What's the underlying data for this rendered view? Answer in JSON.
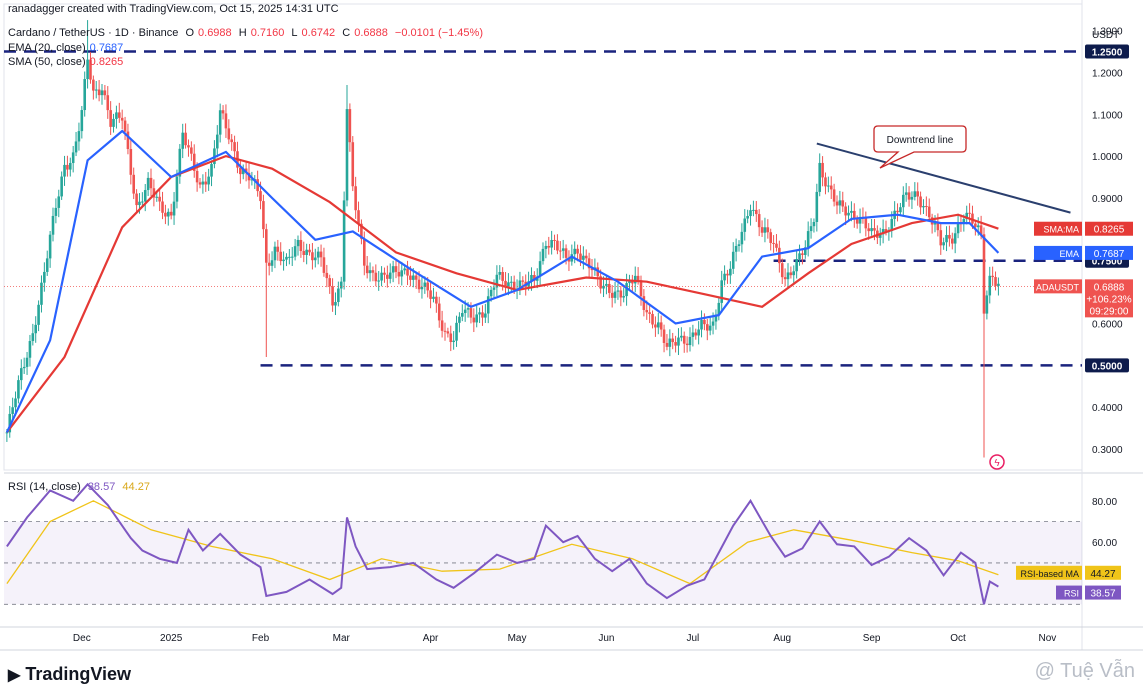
{
  "header": {
    "created_by": "ranadagger created with TradingView.com, Oct 15, 2025 14:31 UTC",
    "symbol": "Cardano / TetherUS · 1D · Binance",
    "open_label": "O",
    "open": "0.6988",
    "high_label": "H",
    "high": "0.7160",
    "low_label": "L",
    "low": "0.6742",
    "close_label": "C",
    "close": "0.6888",
    "change": "−0.0101 (−1.45%)",
    "ema_label": "EMA (20, close)",
    "ema_value": "0.7687",
    "sma_label": "SMA (50, close)",
    "sma_value": "0.8265"
  },
  "rsi_header": {
    "label": "RSI (14, close)",
    "rsi": "38.57",
    "ma": "44.27"
  },
  "footer": {
    "brand": "TradingView",
    "watermark": "@ Tuệ Vẫn"
  },
  "colors": {
    "up": "#26a69a",
    "down": "#ef5350",
    "ema": "#2962ff",
    "sma": "#e53935",
    "level": "#1a237e",
    "trend": "#2a3f6e",
    "rsi": "#7e57c2",
    "rsi_ma": "#f0c419"
  },
  "chart_data": [
    {
      "type": "candlestick",
      "title": "Cardano / TetherUS · 1D · Binance",
      "unit": "USDT",
      "y_ticks": [
        "1.3000",
        "1.2000",
        "1.1000",
        "1.0000",
        "0.9000",
        "0.6000",
        "0.4000",
        "0.3000"
      ],
      "ylim": [
        0.25,
        1.33
      ],
      "x_labels": [
        "Dec",
        "2025",
        "Feb",
        "Mar",
        "Apr",
        "May",
        "Jun",
        "Jul",
        "Aug",
        "Sep",
        "Oct",
        "Nov"
      ],
      "x_dates": [
        "2024-12-01",
        "2025-01-01",
        "2025-02-01",
        "2025-03-01",
        "2025-04-01",
        "2025-05-01",
        "2025-06-01",
        "2025-07-01",
        "2025-08-01",
        "2025-09-01",
        "2025-10-01",
        "2025-11-01"
      ],
      "xlim": [
        "2024-11-04",
        "2025-11-13"
      ],
      "closes": [
        {
          "d": "2024-11-05",
          "c": 0.34
        },
        {
          "d": "2024-11-10",
          "c": 0.48
        },
        {
          "d": "2024-11-14",
          "c": 0.58
        },
        {
          "d": "2024-11-18",
          "c": 0.72
        },
        {
          "d": "2024-11-22",
          "c": 0.88
        },
        {
          "d": "2024-11-25",
          "c": 0.98
        },
        {
          "d": "2024-11-28",
          "c": 1.0
        },
        {
          "d": "2024-12-01",
          "c": 1.1
        },
        {
          "d": "2024-12-03",
          "c": 1.23
        },
        {
          "d": "2024-12-05",
          "c": 1.15
        },
        {
          "d": "2024-12-08",
          "c": 1.17
        },
        {
          "d": "2024-12-11",
          "c": 1.08
        },
        {
          "d": "2024-12-15",
          "c": 1.09
        },
        {
          "d": "2024-12-18",
          "c": 0.97
        },
        {
          "d": "2024-12-20",
          "c": 0.88
        },
        {
          "d": "2024-12-24",
          "c": 0.93
        },
        {
          "d": "2024-12-28",
          "c": 0.88
        },
        {
          "d": "2025-01-01",
          "c": 0.86
        },
        {
          "d": "2025-01-05",
          "c": 1.05
        },
        {
          "d": "2025-01-08",
          "c": 0.99
        },
        {
          "d": "2025-01-11",
          "c": 0.93
        },
        {
          "d": "2025-01-15",
          "c": 0.97
        },
        {
          "d": "2025-01-18",
          "c": 1.1
        },
        {
          "d": "2025-01-21",
          "c": 1.05
        },
        {
          "d": "2025-01-25",
          "c": 0.97
        },
        {
          "d": "2025-01-28",
          "c": 0.95
        },
        {
          "d": "2025-02-01",
          "c": 0.9
        },
        {
          "d": "2025-02-03",
          "c": 0.74
        },
        {
          "d": "2025-02-06",
          "c": 0.78
        },
        {
          "d": "2025-02-10",
          "c": 0.74
        },
        {
          "d": "2025-02-14",
          "c": 0.79
        },
        {
          "d": "2025-02-18",
          "c": 0.77
        },
        {
          "d": "2025-02-22",
          "c": 0.75
        },
        {
          "d": "2025-02-26",
          "c": 0.65
        },
        {
          "d": "2025-03-01",
          "c": 0.7
        },
        {
          "d": "2025-03-03",
          "c": 1.12
        },
        {
          "d": "2025-03-05",
          "c": 0.92
        },
        {
          "d": "2025-03-09",
          "c": 0.74
        },
        {
          "d": "2025-03-12",
          "c": 0.72
        },
        {
          "d": "2025-03-16",
          "c": 0.71
        },
        {
          "d": "2025-03-20",
          "c": 0.72
        },
        {
          "d": "2025-03-24",
          "c": 0.73
        },
        {
          "d": "2025-03-28",
          "c": 0.69
        },
        {
          "d": "2025-04-02",
          "c": 0.66
        },
        {
          "d": "2025-04-06",
          "c": 0.58
        },
        {
          "d": "2025-04-09",
          "c": 0.56
        },
        {
          "d": "2025-04-12",
          "c": 0.63
        },
        {
          "d": "2025-04-16",
          "c": 0.62
        },
        {
          "d": "2025-04-20",
          "c": 0.63
        },
        {
          "d": "2025-04-24",
          "c": 0.71
        },
        {
          "d": "2025-04-28",
          "c": 0.7
        },
        {
          "d": "2025-05-03",
          "c": 0.69
        },
        {
          "d": "2025-05-07",
          "c": 0.7
        },
        {
          "d": "2025-05-11",
          "c": 0.8
        },
        {
          "d": "2025-05-14",
          "c": 0.79
        },
        {
          "d": "2025-05-18",
          "c": 0.75
        },
        {
          "d": "2025-05-22",
          "c": 0.78
        },
        {
          "d": "2025-05-26",
          "c": 0.74
        },
        {
          "d": "2025-05-30",
          "c": 0.69
        },
        {
          "d": "2025-06-03",
          "c": 0.68
        },
        {
          "d": "2025-06-07",
          "c": 0.67
        },
        {
          "d": "2025-06-11",
          "c": 0.71
        },
        {
          "d": "2025-06-15",
          "c": 0.63
        },
        {
          "d": "2025-06-19",
          "c": 0.59
        },
        {
          "d": "2025-06-22",
          "c": 0.54
        },
        {
          "d": "2025-06-26",
          "c": 0.57
        },
        {
          "d": "2025-06-30",
          "c": 0.56
        },
        {
          "d": "2025-07-04",
          "c": 0.59
        },
        {
          "d": "2025-07-08",
          "c": 0.6
        },
        {
          "d": "2025-07-11",
          "c": 0.7
        },
        {
          "d": "2025-07-14",
          "c": 0.73
        },
        {
          "d": "2025-07-18",
          "c": 0.82
        },
        {
          "d": "2025-07-21",
          "c": 0.89
        },
        {
          "d": "2025-07-25",
          "c": 0.82
        },
        {
          "d": "2025-07-29",
          "c": 0.79
        },
        {
          "d": "2025-08-02",
          "c": 0.71
        },
        {
          "d": "2025-08-06",
          "c": 0.74
        },
        {
          "d": "2025-08-09",
          "c": 0.78
        },
        {
          "d": "2025-08-12",
          "c": 0.86
        },
        {
          "d": "2025-08-14",
          "c": 0.98
        },
        {
          "d": "2025-08-17",
          "c": 0.92
        },
        {
          "d": "2025-08-20",
          "c": 0.88
        },
        {
          "d": "2025-08-24",
          "c": 0.87
        },
        {
          "d": "2025-08-28",
          "c": 0.85
        },
        {
          "d": "2025-09-01",
          "c": 0.81
        },
        {
          "d": "2025-09-05",
          "c": 0.82
        },
        {
          "d": "2025-09-09",
          "c": 0.86
        },
        {
          "d": "2025-09-13",
          "c": 0.9
        },
        {
          "d": "2025-09-17",
          "c": 0.91
        },
        {
          "d": "2025-09-21",
          "c": 0.86
        },
        {
          "d": "2025-09-25",
          "c": 0.79
        },
        {
          "d": "2025-09-29",
          "c": 0.81
        },
        {
          "d": "2025-10-03",
          "c": 0.86
        },
        {
          "d": "2025-10-06",
          "c": 0.84
        },
        {
          "d": "2025-10-09",
          "c": 0.81
        },
        {
          "d": "2025-10-10",
          "c": 0.64
        },
        {
          "d": "2025-10-12",
          "c": 0.71
        },
        {
          "d": "2025-10-13",
          "c": 0.72
        },
        {
          "d": "2025-10-15",
          "c": 0.6888
        }
      ],
      "extreme_wicks": [
        {
          "d": "2024-12-03",
          "h": 1.325
        },
        {
          "d": "2025-02-03",
          "l": 0.52
        },
        {
          "d": "2025-03-03",
          "h": 1.17
        },
        {
          "d": "2025-10-10",
          "l": 0.28
        }
      ],
      "ema20": [
        {
          "d": "2024-11-05",
          "v": 0.34
        },
        {
          "d": "2024-11-20",
          "v": 0.56
        },
        {
          "d": "2024-12-03",
          "v": 0.99
        },
        {
          "d": "2024-12-15",
          "v": 1.06
        },
        {
          "d": "2025-01-01",
          "v": 0.95
        },
        {
          "d": "2025-01-20",
          "v": 1.01
        },
        {
          "d": "2025-02-05",
          "v": 0.9
        },
        {
          "d": "2025-02-20",
          "v": 0.8
        },
        {
          "d": "2025-03-05",
          "v": 0.82
        },
        {
          "d": "2025-03-25",
          "v": 0.73
        },
        {
          "d": "2025-04-15",
          "v": 0.64
        },
        {
          "d": "2025-05-01",
          "v": 0.68
        },
        {
          "d": "2025-05-20",
          "v": 0.76
        },
        {
          "d": "2025-06-05",
          "v": 0.7
        },
        {
          "d": "2025-06-25",
          "v": 0.6
        },
        {
          "d": "2025-07-10",
          "v": 0.62
        },
        {
          "d": "2025-07-25",
          "v": 0.76
        },
        {
          "d": "2025-08-10",
          "v": 0.78
        },
        {
          "d": "2025-08-25",
          "v": 0.85
        },
        {
          "d": "2025-09-10",
          "v": 0.86
        },
        {
          "d": "2025-09-25",
          "v": 0.84
        },
        {
          "d": "2025-10-05",
          "v": 0.84
        },
        {
          "d": "2025-10-15",
          "v": 0.7687
        }
      ],
      "sma50": [
        {
          "d": "2024-11-05",
          "v": 0.34
        },
        {
          "d": "2024-11-25",
          "v": 0.52
        },
        {
          "d": "2024-12-15",
          "v": 0.83
        },
        {
          "d": "2025-01-01",
          "v": 0.95
        },
        {
          "d": "2025-01-20",
          "v": 1.0
        },
        {
          "d": "2025-02-05",
          "v": 0.97
        },
        {
          "d": "2025-02-25",
          "v": 0.89
        },
        {
          "d": "2025-03-20",
          "v": 0.77
        },
        {
          "d": "2025-04-10",
          "v": 0.72
        },
        {
          "d": "2025-05-01",
          "v": 0.68
        },
        {
          "d": "2025-05-25",
          "v": 0.71
        },
        {
          "d": "2025-06-15",
          "v": 0.7
        },
        {
          "d": "2025-07-05",
          "v": 0.67
        },
        {
          "d": "2025-07-25",
          "v": 0.64
        },
        {
          "d": "2025-08-10",
          "v": 0.72
        },
        {
          "d": "2025-08-25",
          "v": 0.79
        },
        {
          "d": "2025-09-15",
          "v": 0.84
        },
        {
          "d": "2025-10-01",
          "v": 0.86
        },
        {
          "d": "2025-10-15",
          "v": 0.8265
        }
      ],
      "horizontal_levels": [
        {
          "value": 1.25,
          "label": "1.2500"
        },
        {
          "value": 0.75,
          "label": "0.7500"
        },
        {
          "value": 0.5,
          "label": "0.5000"
        }
      ],
      "trendline": {
        "from": {
          "d": "2025-08-13",
          "v": 1.03
        },
        "to": {
          "d": "2025-11-09",
          "v": 0.865
        }
      },
      "annotation": "Downtrend line",
      "price_tags": [
        {
          "label": "SMA:MA",
          "value": "0.8265"
        },
        {
          "label": "EMA",
          "value": "0.7687"
        },
        {
          "label": "ADAUSDT",
          "value": "0.6888",
          "lines": [
            "+106.23%",
            "09:29:00"
          ]
        }
      ]
    },
    {
      "type": "line",
      "title": "RSI (14, close)",
      "y_ticks": [
        "80.00",
        "60.00"
      ],
      "ylim": [
        20,
        92
      ],
      "band": [
        30,
        70
      ],
      "rsi": [
        {
          "d": "2024-11-05",
          "v": 58
        },
        {
          "d": "2024-11-12",
          "v": 72
        },
        {
          "d": "2024-11-20",
          "v": 85
        },
        {
          "d": "2024-11-28",
          "v": 80
        },
        {
          "d": "2024-12-03",
          "v": 88
        },
        {
          "d": "2024-12-10",
          "v": 78
        },
        {
          "d": "2024-12-18",
          "v": 62
        },
        {
          "d": "2024-12-22",
          "v": 56
        },
        {
          "d": "2024-12-28",
          "v": 52
        },
        {
          "d": "2025-01-03",
          "v": 50
        },
        {
          "d": "2025-01-07",
          "v": 66
        },
        {
          "d": "2025-01-12",
          "v": 56
        },
        {
          "d": "2025-01-18",
          "v": 64
        },
        {
          "d": "2025-01-25",
          "v": 54
        },
        {
          "d": "2025-02-01",
          "v": 48
        },
        {
          "d": "2025-02-03",
          "v": 34
        },
        {
          "d": "2025-02-10",
          "v": 36
        },
        {
          "d": "2025-02-18",
          "v": 42
        },
        {
          "d": "2025-02-26",
          "v": 35
        },
        {
          "d": "2025-03-01",
          "v": 38
        },
        {
          "d": "2025-03-03",
          "v": 72
        },
        {
          "d": "2025-03-06",
          "v": 58
        },
        {
          "d": "2025-03-10",
          "v": 47
        },
        {
          "d": "2025-03-18",
          "v": 48
        },
        {
          "d": "2025-03-26",
          "v": 50
        },
        {
          "d": "2025-04-03",
          "v": 42
        },
        {
          "d": "2025-04-09",
          "v": 38
        },
        {
          "d": "2025-04-16",
          "v": 45
        },
        {
          "d": "2025-04-24",
          "v": 54
        },
        {
          "d": "2025-05-01",
          "v": 50
        },
        {
          "d": "2025-05-07",
          "v": 52
        },
        {
          "d": "2025-05-11",
          "v": 68
        },
        {
          "d": "2025-05-17",
          "v": 60
        },
        {
          "d": "2025-05-22",
          "v": 63
        },
        {
          "d": "2025-05-28",
          "v": 52
        },
        {
          "d": "2025-06-03",
          "v": 46
        },
        {
          "d": "2025-06-09",
          "v": 52
        },
        {
          "d": "2025-06-15",
          "v": 40
        },
        {
          "d": "2025-06-22",
          "v": 33
        },
        {
          "d": "2025-06-29",
          "v": 39
        },
        {
          "d": "2025-07-05",
          "v": 42
        },
        {
          "d": "2025-07-10",
          "v": 55
        },
        {
          "d": "2025-07-15",
          "v": 68
        },
        {
          "d": "2025-07-21",
          "v": 80
        },
        {
          "d": "2025-07-28",
          "v": 63
        },
        {
          "d": "2025-08-02",
          "v": 53
        },
        {
          "d": "2025-08-08",
          "v": 57
        },
        {
          "d": "2025-08-14",
          "v": 70
        },
        {
          "d": "2025-08-20",
          "v": 59
        },
        {
          "d": "2025-08-26",
          "v": 58
        },
        {
          "d": "2025-09-01",
          "v": 49
        },
        {
          "d": "2025-09-07",
          "v": 53
        },
        {
          "d": "2025-09-14",
          "v": 62
        },
        {
          "d": "2025-09-20",
          "v": 56
        },
        {
          "d": "2025-09-26",
          "v": 44
        },
        {
          "d": "2025-10-02",
          "v": 55
        },
        {
          "d": "2025-10-07",
          "v": 50
        },
        {
          "d": "2025-10-10",
          "v": 30
        },
        {
          "d": "2025-10-12",
          "v": 41
        },
        {
          "d": "2025-10-15",
          "v": 38.57
        }
      ],
      "rsi_ma": [
        {
          "d": "2024-11-05",
          "v": 40
        },
        {
          "d": "2024-11-20",
          "v": 70
        },
        {
          "d": "2024-12-05",
          "v": 80
        },
        {
          "d": "2024-12-25",
          "v": 66
        },
        {
          "d": "2025-01-15",
          "v": 58
        },
        {
          "d": "2025-02-05",
          "v": 52
        },
        {
          "d": "2025-02-25",
          "v": 42
        },
        {
          "d": "2025-03-15",
          "v": 52
        },
        {
          "d": "2025-04-05",
          "v": 46
        },
        {
          "d": "2025-04-25",
          "v": 47
        },
        {
          "d": "2025-05-20",
          "v": 59
        },
        {
          "d": "2025-06-10",
          "v": 52
        },
        {
          "d": "2025-06-30",
          "v": 40
        },
        {
          "d": "2025-07-20",
          "v": 60
        },
        {
          "d": "2025-08-05",
          "v": 66
        },
        {
          "d": "2025-08-25",
          "v": 61
        },
        {
          "d": "2025-09-15",
          "v": 55
        },
        {
          "d": "2025-10-01",
          "v": 51
        },
        {
          "d": "2025-10-15",
          "v": 44.27
        }
      ],
      "tags": [
        {
          "label": "RSI-based MA",
          "value": "44.27"
        },
        {
          "label": "RSI",
          "value": "38.57"
        }
      ]
    }
  ]
}
